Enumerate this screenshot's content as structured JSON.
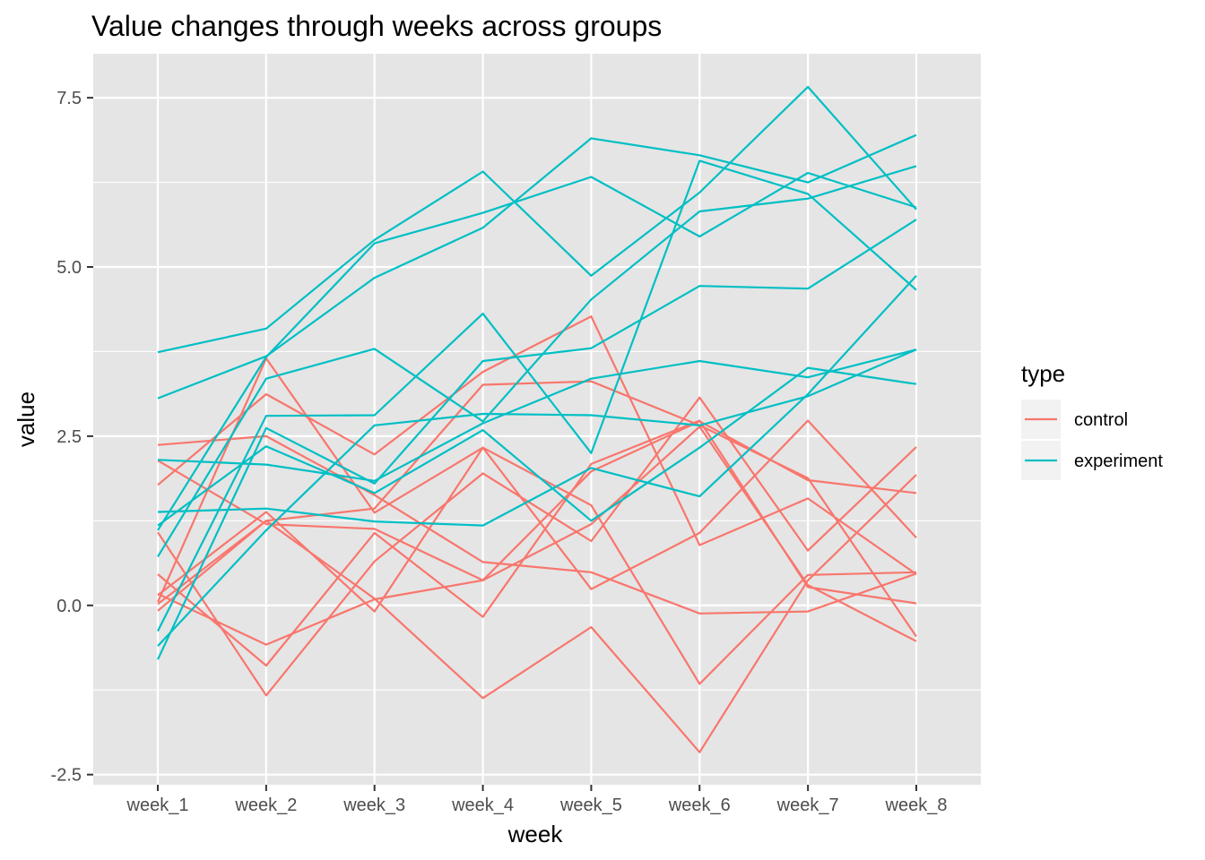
{
  "chart_data": {
    "type": "line",
    "title": "Value changes through weeks across groups",
    "xlabel": "week",
    "ylabel": "value",
    "categories": [
      "week_1",
      "week_2",
      "week_3",
      "week_4",
      "week_5",
      "week_6",
      "week_7",
      "week_8"
    ],
    "ylim": [
      -2.65,
      8.15
    ],
    "yticks": [
      -2.5,
      0.0,
      2.5,
      5.0,
      7.5
    ],
    "ytick_labels": [
      "-2.5",
      "0.0",
      "2.5",
      "5.0",
      "7.5"
    ],
    "grid": true,
    "background": "#e5e5e5",
    "legend": {
      "title": "type",
      "placement": "right",
      "entries": [
        {
          "label": "control",
          "color": "#f8766d"
        },
        {
          "label": "experiment",
          "color": "#00bfc4"
        }
      ]
    },
    "series": [
      {
        "group": "control",
        "color": "#f8766d",
        "values": [
          2.37,
          2.5,
          1.63,
          0.64,
          0.49,
          -0.12,
          -0.09,
          0.47
        ]
      },
      {
        "group": "control",
        "color": "#f8766d",
        "values": [
          2.14,
          1.2,
          1.13,
          0.37,
          1.98,
          2.72,
          1.85,
          1.66
        ]
      },
      {
        "group": "control",
        "color": "#f8766d",
        "values": [
          1.08,
          -1.33,
          0.65,
          1.95,
          0.95,
          3.07,
          0.81,
          2.34
        ]
      },
      {
        "group": "control",
        "color": "#f8766d",
        "values": [
          1.78,
          3.12,
          2.23,
          3.45,
          4.27,
          0.89,
          1.58,
          0.46
        ]
      },
      {
        "group": "control",
        "color": "#f8766d",
        "values": [
          0.46,
          -0.89,
          1.07,
          -0.17,
          2.09,
          2.73,
          0.27,
          0.03
        ]
      },
      {
        "group": "control",
        "color": "#f8766d",
        "values": [
          0.17,
          -0.58,
          0.09,
          0.37,
          1.2,
          2.64,
          0.3,
          -0.53
        ]
      },
      {
        "group": "control",
        "color": "#f8766d",
        "values": [
          0.05,
          3.65,
          1.37,
          2.33,
          1.48,
          -1.16,
          0.45,
          0.49
        ]
      },
      {
        "group": "control",
        "color": "#f8766d",
        "values": [
          -0.08,
          1.25,
          0.1,
          -1.37,
          -0.32,
          -2.17,
          0.37,
          1.93
        ]
      },
      {
        "group": "control",
        "color": "#f8766d",
        "values": [
          0.15,
          1.38,
          -0.09,
          2.33,
          0.24,
          1.07,
          2.73,
          1.0
        ]
      },
      {
        "group": "control",
        "color": "#f8766d",
        "values": [
          0.02,
          1.25,
          1.43,
          3.26,
          3.31,
          2.66,
          1.88,
          -0.46
        ]
      },
      {
        "group": "experiment",
        "color": "#00bfc4",
        "values": [
          3.74,
          4.09,
          5.4,
          6.41,
          4.87,
          6.1,
          7.66,
          5.85
        ]
      },
      {
        "group": "experiment",
        "color": "#00bfc4",
        "values": [
          3.06,
          3.68,
          4.84,
          5.58,
          6.9,
          6.65,
          6.25,
          6.95
        ]
      },
      {
        "group": "experiment",
        "color": "#00bfc4",
        "values": [
          2.15,
          2.08,
          1.84,
          2.69,
          3.35,
          3.61,
          3.37,
          3.78
        ]
      },
      {
        "group": "experiment",
        "color": "#00bfc4",
        "values": [
          1.11,
          3.67,
          5.35,
          5.8,
          6.33,
          5.45,
          6.39,
          5.88
        ]
      },
      {
        "group": "experiment",
        "color": "#00bfc4",
        "values": [
          1.18,
          2.35,
          1.66,
          2.59,
          1.25,
          2.33,
          3.51,
          3.27
        ]
      },
      {
        "group": "experiment",
        "color": "#00bfc4",
        "values": [
          -0.38,
          2.8,
          2.81,
          4.31,
          2.25,
          6.57,
          6.08,
          4.66
        ]
      },
      {
        "group": "experiment",
        "color": "#00bfc4",
        "values": [
          0.72,
          3.35,
          3.79,
          2.72,
          4.52,
          5.82,
          6.01,
          6.49
        ]
      },
      {
        "group": "experiment",
        "color": "#00bfc4",
        "values": [
          1.38,
          1.43,
          1.24,
          1.18,
          2.03,
          1.61,
          3.12,
          4.87
        ]
      },
      {
        "group": "experiment",
        "color": "#00bfc4",
        "values": [
          -0.8,
          2.62,
          1.8,
          3.61,
          3.8,
          4.72,
          4.68,
          5.7
        ]
      },
      {
        "group": "experiment",
        "color": "#00bfc4",
        "values": [
          -0.6,
          1.11,
          2.66,
          2.83,
          2.81,
          2.66,
          3.09,
          3.78
        ]
      }
    ]
  }
}
